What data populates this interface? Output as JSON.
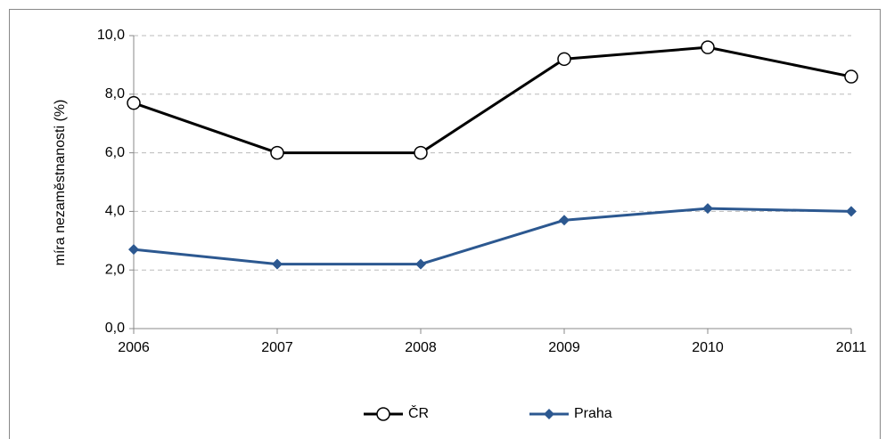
{
  "chart_data": {
    "type": "line",
    "y_label": "míra nezaměstnanosti (%)",
    "categories": [
      "2006",
      "2007",
      "2008",
      "2009",
      "2010",
      "2011"
    ],
    "series": [
      {
        "name": "ČR",
        "color": "#000000",
        "marker": "circle",
        "values": [
          7.7,
          6.0,
          6.0,
          9.2,
          9.6,
          8.6
        ]
      },
      {
        "name": "Praha",
        "color": "#2c5890",
        "marker": "diamond",
        "values": [
          2.7,
          2.2,
          2.2,
          3.7,
          4.1,
          4.0
        ]
      }
    ],
    "ylim": [
      0,
      10
    ],
    "yticks": [
      {
        "value": 0,
        "label": "0,0"
      },
      {
        "value": 2,
        "label": "2,0"
      },
      {
        "value": 4,
        "label": "4,0"
      },
      {
        "value": 6,
        "label": "6,0"
      },
      {
        "value": 8,
        "label": "8,0"
      },
      {
        "value": 10,
        "label": "10,0"
      }
    ],
    "grid": true,
    "legend": "bottom"
  }
}
